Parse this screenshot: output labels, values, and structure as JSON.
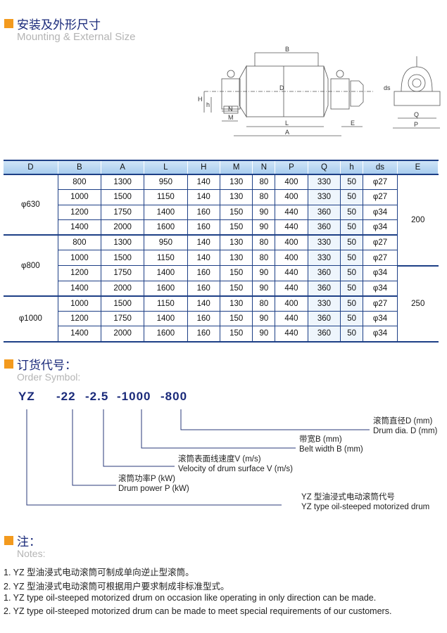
{
  "section1": {
    "title_cn": "安装及外形尺寸",
    "title_en": "Mounting & External Size"
  },
  "drawing": {
    "labels": [
      "B",
      "D",
      "H",
      "h",
      "N",
      "M",
      "L",
      "A",
      "E",
      "ds",
      "Q",
      "P"
    ]
  },
  "table": {
    "headers": [
      "D",
      "B",
      "A",
      "L",
      "H",
      "M",
      "N",
      "P",
      "Q",
      "h",
      "ds",
      "E"
    ],
    "groups": [
      {
        "D": "φ630",
        "rows": 4
      },
      {
        "D": "φ800",
        "rows": 4
      },
      {
        "D": "φ1000",
        "rows": 3
      }
    ],
    "e_groups": [
      {
        "E": "200",
        "rows": 6
      },
      {
        "E": "250",
        "rows": 5
      }
    ],
    "rows": [
      [
        "800",
        "1300",
        "950",
        "140",
        "130",
        "80",
        "400",
        "330",
        "50",
        "φ27"
      ],
      [
        "1000",
        "1500",
        "1150",
        "140",
        "130",
        "80",
        "400",
        "330",
        "50",
        "φ27"
      ],
      [
        "1200",
        "1750",
        "1400",
        "160",
        "150",
        "90",
        "440",
        "360",
        "50",
        "φ34"
      ],
      [
        "1400",
        "2000",
        "1600",
        "160",
        "150",
        "90",
        "440",
        "360",
        "50",
        "φ34"
      ],
      [
        "800",
        "1300",
        "950",
        "140",
        "130",
        "80",
        "400",
        "330",
        "50",
        "φ27"
      ],
      [
        "1000",
        "1500",
        "1150",
        "140",
        "130",
        "80",
        "400",
        "330",
        "50",
        "φ27"
      ],
      [
        "1200",
        "1750",
        "1400",
        "160",
        "150",
        "90",
        "440",
        "360",
        "50",
        "φ34"
      ],
      [
        "1400",
        "2000",
        "1600",
        "160",
        "150",
        "90",
        "440",
        "360",
        "50",
        "φ34"
      ],
      [
        "1000",
        "1500",
        "1150",
        "140",
        "130",
        "80",
        "400",
        "330",
        "50",
        "φ27"
      ],
      [
        "1200",
        "1750",
        "1400",
        "160",
        "150",
        "90",
        "440",
        "360",
        "50",
        "φ34"
      ],
      [
        "1400",
        "2000",
        "1600",
        "160",
        "150",
        "90",
        "440",
        "360",
        "50",
        "φ34"
      ]
    ]
  },
  "section2": {
    "title_cn": "订货代号：",
    "title_en": "Order Symbol:"
  },
  "order": {
    "parts": [
      "YZ",
      "-22",
      "-2.5",
      "-1000",
      "-800"
    ],
    "labels": [
      {
        "cn": "滚筒直径D (mm)",
        "en": "Drum dia. D (mm)"
      },
      {
        "cn": "带宽B (mm)",
        "en": "Belt width B (mm)"
      },
      {
        "cn": "滚筒表面线速度V (m/s)",
        "en": "Velocity of drum surface V (m/s)"
      },
      {
        "cn": "滚筒功率P (kW)",
        "en": "Drum power P (kW)"
      },
      {
        "cn": "YZ  型油浸式电动滚筒代号",
        "en": "YZ  type oil-steeped motorized drum"
      }
    ]
  },
  "section3": {
    "title_cn": "注：",
    "title_en": "Notes:"
  },
  "notes": [
    "1. YZ 型油浸式电动滚筒可制成单向逆止型滚筒。",
    "2. YZ 型油浸式电动滚筒可根据用户要求制成非标准型式。",
    "1. YZ type oil-steeped motorized drum on occasion like operating in only direction can be made.",
    "2. YZ type oil-steeped motorized drum can be made to meet special requirements of our customers."
  ],
  "colors": {
    "accent": "#f39a1e",
    "navy": "#1d3f86",
    "header_bg": "#bcd8f2"
  }
}
